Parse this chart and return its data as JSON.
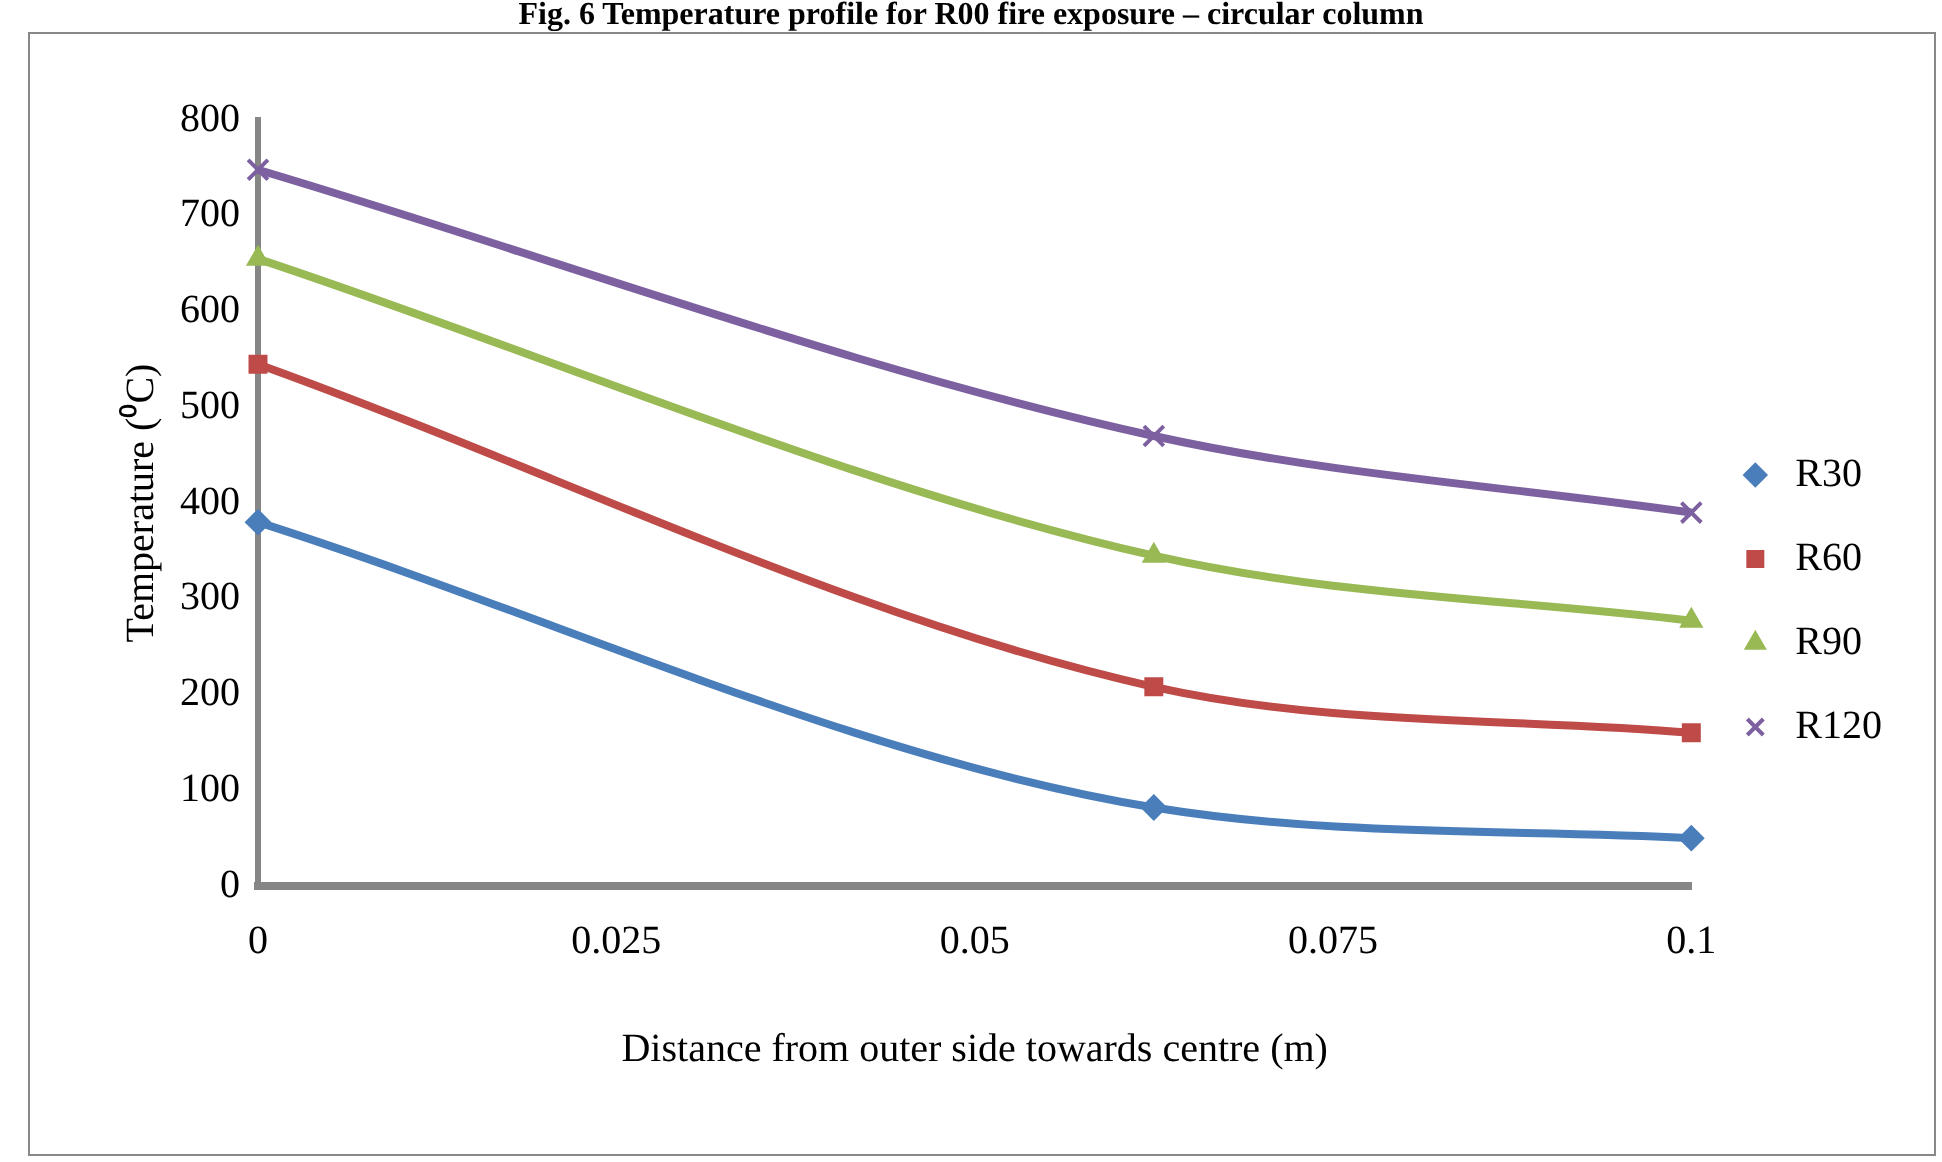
{
  "chart_data": {
    "type": "line",
    "title": "Fig. 6 Temperature profile for R00 fire exposure – circular column",
    "xlabel": "Distance from outer side towards centre (m)",
    "ylabel": "Temperature (⁰C)",
    "x": [
      0,
      0.0625,
      0.1
    ],
    "series": [
      {
        "name": "R30",
        "color": "#4a7ebb",
        "marker": "diamond",
        "values": [
          380,
          82,
          50
        ]
      },
      {
        "name": "R60",
        "color": "#be4b48",
        "marker": "square",
        "values": [
          545,
          208,
          160
        ]
      },
      {
        "name": "R90",
        "color": "#98b954",
        "marker": "triangle",
        "values": [
          655,
          345,
          277
        ]
      },
      {
        "name": "R120",
        "color": "#7d60a0",
        "marker": "cross",
        "values": [
          748,
          470,
          390
        ]
      }
    ],
    "xlim": [
      0,
      0.1
    ],
    "xticks": [
      0,
      0.025,
      0.05,
      0.075,
      0.1
    ],
    "ylim": [
      0,
      800
    ],
    "yticks": [
      0,
      100,
      200,
      300,
      400,
      500,
      600,
      700,
      800
    ],
    "grid": false,
    "legend": "right"
  }
}
